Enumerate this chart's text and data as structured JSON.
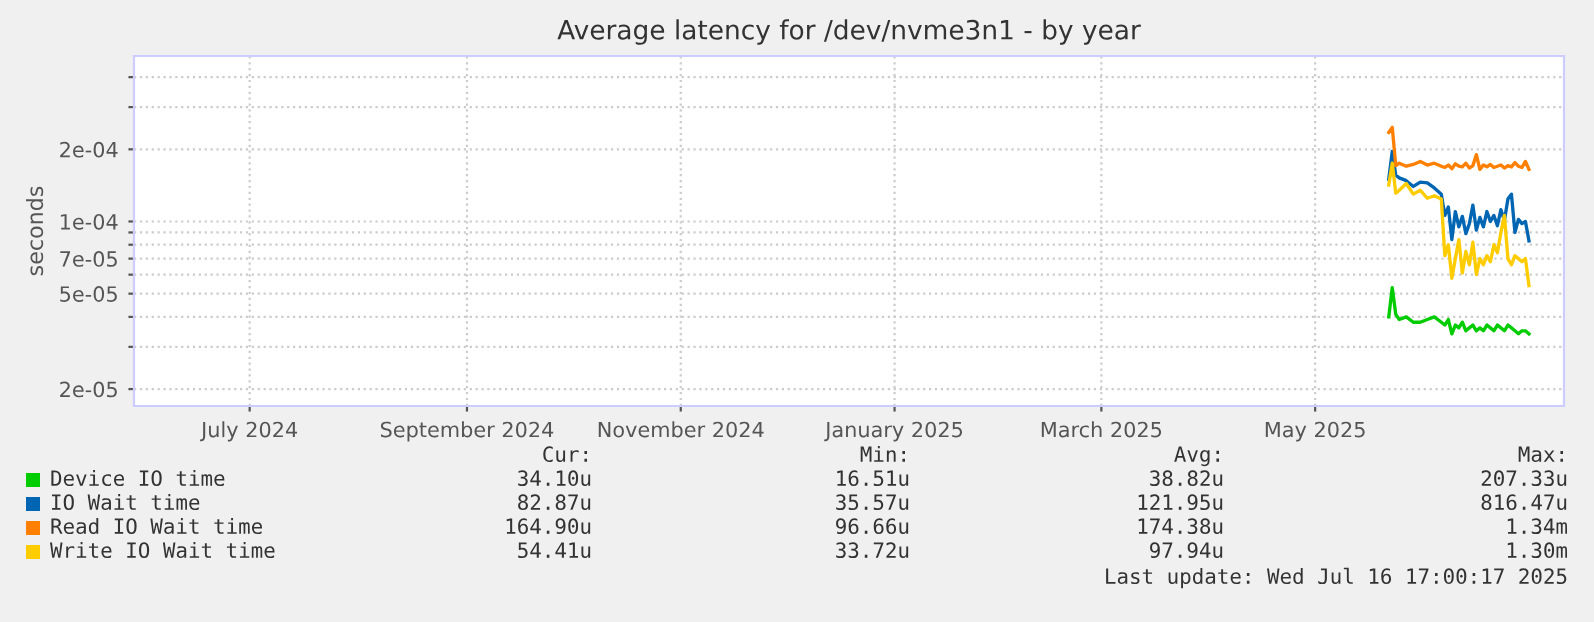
{
  "chart_data": {
    "type": "line",
    "title": "Average latency for /dev/nvme3n1 - by year",
    "ylabel": "seconds",
    "x": [
      "2025-06-06",
      "2025-06-07",
      "2025-06-08",
      "2025-06-09",
      "2025-06-11",
      "2025-06-13",
      "2025-06-15",
      "2025-06-17",
      "2025-06-19",
      "2025-06-21",
      "2025-06-22",
      "2025-06-23",
      "2025-06-24",
      "2025-06-25",
      "2025-06-26",
      "2025-06-27",
      "2025-06-28",
      "2025-06-29",
      "2025-06-30",
      "2025-07-01",
      "2025-07-02",
      "2025-07-03",
      "2025-07-04",
      "2025-07-05",
      "2025-07-06",
      "2025-07-07",
      "2025-07-08",
      "2025-07-09",
      "2025-07-10",
      "2025-07-11",
      "2025-07-12",
      "2025-07-13",
      "2025-07-14",
      "2025-07-15",
      "2025-07-16"
    ],
    "series": [
      {
        "name": "Device IO time",
        "color": "#00cc00",
        "values": [
          4e-05,
          5.3e-05,
          4.1e-05,
          3.9e-05,
          4e-05,
          3.8e-05,
          3.8e-05,
          3.9e-05,
          4e-05,
          3.8e-05,
          3.7e-05,
          3.9e-05,
          3.4e-05,
          3.7e-05,
          3.6e-05,
          3.8e-05,
          3.5e-05,
          3.6e-05,
          3.7e-05,
          3.5e-05,
          3.6e-05,
          3.5e-05,
          3.7e-05,
          3.6e-05,
          3.5e-05,
          3.7e-05,
          3.6e-05,
          3.5e-05,
          3.7e-05,
          3.6e-05,
          3.5e-05,
          3.4e-05,
          3.5e-05,
          3.5e-05,
          3.4e-05
        ]
      },
      {
        "name": "IO Wait time",
        "color": "#0066b3",
        "values": [
          0.00015,
          0.000196,
          0.000156,
          0.000152,
          0.000148,
          0.00014,
          0.000146,
          0.000145,
          0.000138,
          0.00013,
          0.000106,
          0.000115,
          8.4e-05,
          0.00011,
          9.5e-05,
          0.000105,
          8.9e-05,
          9.8e-05,
          0.000117,
          9.2e-05,
          0.000104,
          9.5e-05,
          0.00011,
          0.0001,
          0.000106,
          9.6e-05,
          0.000112,
          0.000101,
          0.000124,
          0.00013,
          9e-05,
          0.000102,
          9.8e-05,
          0.0001,
          8.3e-05
        ]
      },
      {
        "name": "Read IO Wait time",
        "color": "#ff8000",
        "values": [
          0.000235,
          0.000247,
          0.000171,
          0.000175,
          0.00017,
          0.000173,
          0.000178,
          0.000172,
          0.000175,
          0.00017,
          0.000168,
          0.000172,
          0.000166,
          0.000174,
          0.00017,
          0.000169,
          0.000175,
          0.000167,
          0.000171,
          0.00019,
          0.000165,
          0.000172,
          0.000169,
          0.000173,
          0.000168,
          0.00017,
          0.000172,
          0.000167,
          0.000171,
          0.000169,
          0.000176,
          0.00017,
          0.000168,
          0.000178,
          0.000165
        ]
      },
      {
        "name": "Write IO Wait time",
        "color": "#ffcc00",
        "values": [
          0.000142,
          0.000175,
          0.000131,
          0.000135,
          0.000144,
          0.00013,
          0.000135,
          0.000125,
          0.000128,
          0.000124,
          7.2e-05,
          8e-05,
          5.8e-05,
          7e-05,
          8.4e-05,
          6.1e-05,
          7.5e-05,
          6.6e-05,
          8.2e-05,
          6e-05,
          7e-05,
          6.6e-05,
          7.2e-05,
          6.8e-05,
          8e-05,
          7.4e-05,
          9e-05,
          0.000106,
          7e-05,
          6.6e-05,
          7.2e-05,
          7e-05,
          6.8e-05,
          7e-05,
          5.4e-05
        ]
      }
    ],
    "log": true,
    "xlim": [
      "2024-06-13",
      "2025-07-26"
    ],
    "xticks": [
      {
        "value": "2024-07-16",
        "label": "July 2024"
      },
      {
        "value": "2024-09-16",
        "label": "September 2024"
      },
      {
        "value": "2024-11-16",
        "label": "November 2024"
      },
      {
        "value": "2025-01-16",
        "label": "January 2025"
      },
      {
        "value": "2025-03-16",
        "label": "March 2025"
      },
      {
        "value": "2025-05-16",
        "label": "May 2025"
      }
    ],
    "ylim": [
      1.7e-05,
      0.00049
    ],
    "yticks": [
      {
        "value": 2e-05,
        "label": "2e-05"
      },
      {
        "value": 3e-05,
        "label": null
      },
      {
        "value": 4e-05,
        "label": null
      },
      {
        "value": 5e-05,
        "label": "5e-05"
      },
      {
        "value": 6e-05,
        "label": null
      },
      {
        "value": 7e-05,
        "label": "7e-05"
      },
      {
        "value": 8e-05,
        "label": null
      },
      {
        "value": 9e-05,
        "label": null
      },
      {
        "value": 0.0001,
        "label": "1e-04"
      },
      {
        "value": 0.0002,
        "label": "2e-04"
      },
      {
        "value": 0.0003,
        "label": null
      },
      {
        "value": 0.0004,
        "label": null
      }
    ],
    "grid": true,
    "legend": "bottom left",
    "marker": "none",
    "line_style": "solid",
    "annotations": [
      "Cur:",
      "Min:",
      "Avg:",
      "Max:",
      "34.10u",
      "16.51u",
      "38.82u",
      "207.33u",
      "82.87u",
      "35.57u",
      "121.95u",
      "816.47u",
      "164.90u",
      "96.66u",
      "174.38u",
      "1.34m",
      "54.41u",
      "33.72u",
      "97.94u",
      "1.30m",
      "Last update: Wed Jul 16 17:00:17 2025"
    ]
  }
}
